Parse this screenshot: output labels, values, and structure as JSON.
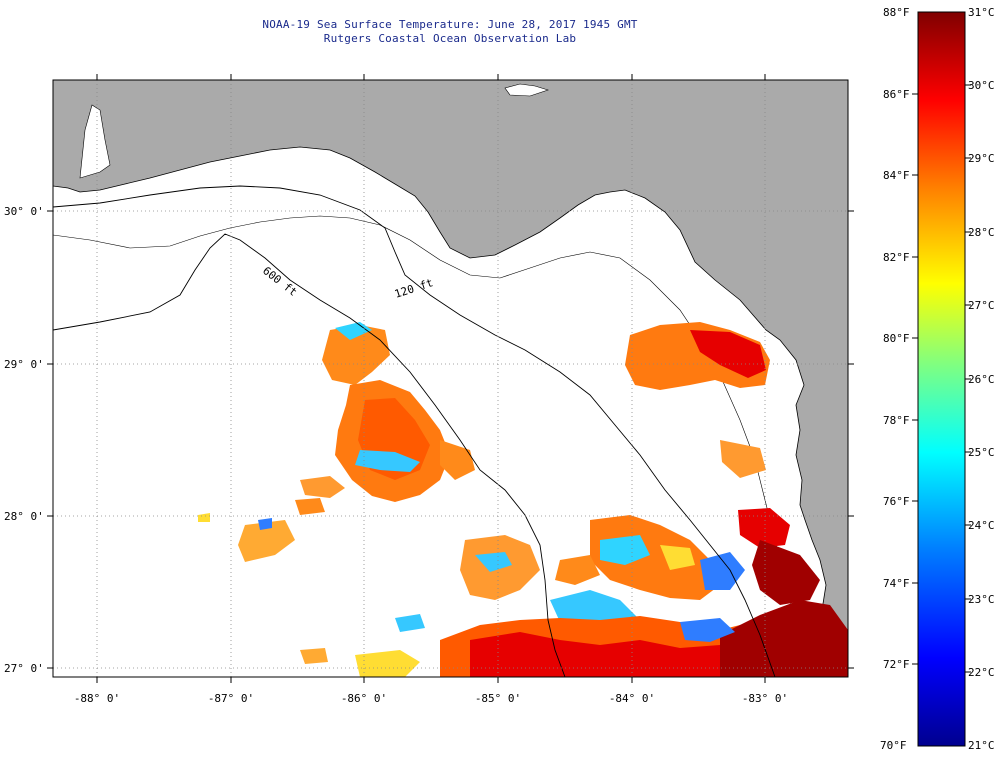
{
  "header": {
    "title_line1": "NOAA-19 Sea Surface Temperature:  June 28, 2017 1945 GMT",
    "title_line2": "Rutgers Coastal Ocean Observation Lab"
  },
  "map": {
    "lat_labels": [
      "30° 0'",
      "29° 0'",
      "28° 0'",
      "27° 0'"
    ],
    "lon_labels": [
      "-88° 0'",
      "-87° 0'",
      "-86° 0'",
      "-85° 0'",
      "-84° 0'",
      "-83° 0'"
    ],
    "isobath_labels": [
      "600 ft",
      "120 ft"
    ],
    "colors": {
      "land": "#aaaaaa",
      "ocean": "#ffffff",
      "grid": "#888888"
    }
  },
  "colorbar": {
    "fahrenheit_labels": [
      "88°F",
      "86°F",
      "84°F",
      "82°F",
      "80°F",
      "78°F",
      "76°F",
      "74°F",
      "72°F",
      "70°F"
    ],
    "celsius_labels": [
      "31°C",
      "30°C",
      "29°C",
      "28°C",
      "27°C",
      "26°C",
      "25°C",
      "24°C",
      "23°C",
      "22°C",
      "21°C"
    ],
    "gradient": [
      "#00008f",
      "#0000ff",
      "#0080ff",
      "#00ffff",
      "#80ff80",
      "#ffff00",
      "#ff8000",
      "#ff0000",
      "#800000"
    ]
  }
}
